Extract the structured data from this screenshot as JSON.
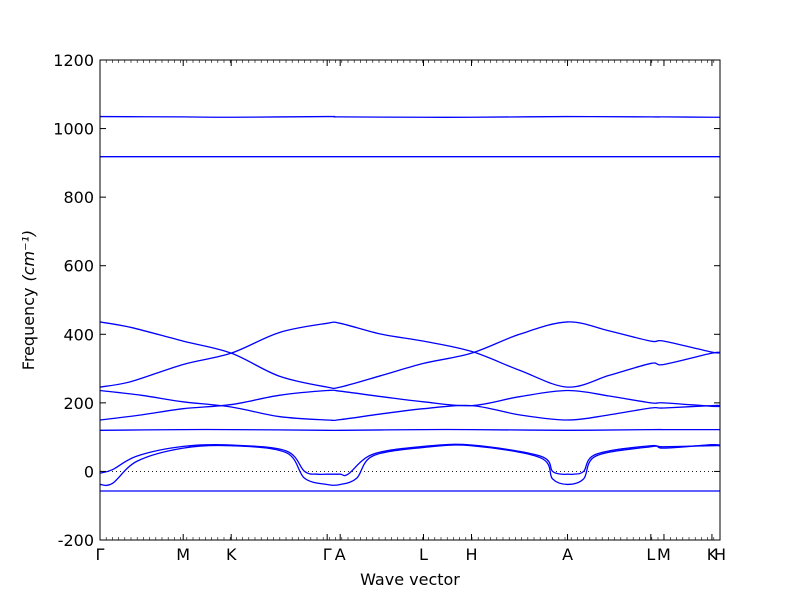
{
  "chart_data": {
    "type": "line",
    "title": "",
    "xlabel": "Wave vector",
    "ylabel": "Frequency",
    "ylabel_unit": "(cm⁻¹)",
    "ylim": [
      -200,
      1200
    ],
    "yticks": [
      -200,
      0,
      200,
      400,
      600,
      800,
      1000,
      1200
    ],
    "grid": false,
    "legend": "none",
    "line_color": "#0000ff",
    "zero_line_color": "#000000",
    "x_ticks": [
      {
        "label": "Γ",
        "x": 0.0
      },
      {
        "label": "M",
        "x": 0.1342
      },
      {
        "label": "K",
        "x": 0.2116
      },
      {
        "label": "Γ",
        "x": 0.3664
      },
      {
        "label": "A",
        "x": 0.3874
      },
      {
        "label": "L",
        "x": 0.5218
      },
      {
        "label": "H",
        "x": 0.5992
      },
      {
        "label": "A",
        "x": 0.7541
      },
      {
        "label": "L",
        "x": 0.8884
      },
      {
        "label": "M",
        "x": 0.9096
      },
      {
        "label": "K",
        "x": 0.987
      },
      {
        "label": "H",
        "x": 1.0
      }
    ],
    "series": [
      {
        "x": [
          0,
          0.1342,
          0.1729,
          0.2116,
          0.289,
          0.3664,
          0.3874,
          0.5218,
          0.5992,
          0.6766,
          0.7541,
          0.8884,
          0.9096,
          0.987,
          1.0
        ],
        "y": [
          -57,
          -57,
          -57,
          -57,
          -57,
          -57,
          -57,
          -57,
          -57,
          -57,
          -57,
          -57,
          -57,
          -57,
          -57
        ]
      },
      {
        "x": [
          0,
          0.02,
          0.06,
          0.1342,
          0.2116,
          0.3,
          0.33,
          0.3664,
          0.3874,
          0.414,
          0.44,
          0.5218,
          0.5992,
          0.71,
          0.73,
          0.7541,
          0.78,
          0.8,
          0.8884,
          0.9096,
          0.987,
          1.0
        ],
        "y": [
          -38,
          -35,
          30,
          68,
          75,
          55,
          -20,
          -38,
          -38,
          -20,
          45,
          70,
          75,
          40,
          -22,
          -38,
          -22,
          45,
          72,
          72,
          75,
          75
        ]
      },
      {
        "x": [
          0,
          0.02,
          0.06,
          0.1342,
          0.2116,
          0.3,
          0.33,
          0.35,
          0.3664,
          0.3874,
          0.4,
          0.44,
          0.5218,
          0.5992,
          0.71,
          0.73,
          0.745,
          0.7541,
          0.765,
          0.78,
          0.8,
          0.8884,
          0.9096,
          0.987,
          1.0
        ],
        "y": [
          -5,
          5,
          45,
          73,
          77,
          60,
          0,
          -8,
          -8,
          -8,
          -8,
          50,
          73,
          77,
          45,
          0,
          -8,
          -8,
          -8,
          0,
          50,
          75,
          68,
          78,
          76
        ]
      },
      {
        "x": [
          0,
          0.1342,
          0.2116,
          0.3664,
          0.3874,
          0.5218,
          0.5992,
          0.7541,
          0.8884,
          0.9096,
          0.987,
          1.0
        ],
        "y": [
          120,
          122,
          122,
          120,
          120,
          122,
          122,
          120,
          122,
          122,
          122,
          122
        ]
      },
      {
        "x": [
          0,
          0.0671,
          0.1342,
          0.2116,
          0.289,
          0.3664,
          0.3874,
          0.4546,
          0.5218,
          0.5992,
          0.6766,
          0.7541,
          0.8212,
          0.8884,
          0.9096,
          0.987,
          1.0
        ],
        "y": [
          150,
          165,
          183,
          195,
          222,
          236,
          234,
          218,
          203,
          192,
          218,
          236,
          220,
          200,
          200,
          190,
          190
        ]
      },
      {
        "x": [
          0,
          0.0671,
          0.1342,
          0.2116,
          0.289,
          0.3664,
          0.3874,
          0.4546,
          0.5218,
          0.5992,
          0.6766,
          0.7541,
          0.8212,
          0.8884,
          0.9096,
          0.987,
          1.0
        ],
        "y": [
          236,
          222,
          203,
          188,
          160,
          150,
          151,
          168,
          183,
          192,
          165,
          150,
          165,
          185,
          185,
          192,
          192
        ]
      },
      {
        "x": [
          0,
          0.05,
          0.1342,
          0.2116,
          0.289,
          0.3664,
          0.3874,
          0.4546,
          0.5218,
          0.5992,
          0.6766,
          0.7541,
          0.8212,
          0.8884,
          0.9096,
          0.987,
          1.0
        ],
        "y": [
          246,
          262,
          312,
          345,
          405,
          432,
          432,
          400,
          380,
          350,
          295,
          246,
          280,
          315,
          312,
          345,
          345
        ]
      },
      {
        "x": [
          0,
          0.05,
          0.1342,
          0.2116,
          0.289,
          0.3664,
          0.3874,
          0.4546,
          0.5218,
          0.5992,
          0.6766,
          0.7541,
          0.8212,
          0.8884,
          0.9096,
          0.987,
          1.0
        ],
        "y": [
          436,
          420,
          380,
          345,
          278,
          246,
          246,
          280,
          315,
          345,
          400,
          436,
          410,
          380,
          380,
          348,
          348
        ]
      },
      {
        "x": [
          0,
          0.1342,
          0.2116,
          0.3664,
          0.3874,
          0.5218,
          0.5992,
          0.7541,
          0.8884,
          0.9096,
          0.987,
          1.0
        ],
        "y": [
          918,
          918,
          918,
          918,
          918,
          918,
          918,
          918,
          918,
          918,
          918,
          918
        ]
      },
      {
        "x": [
          0,
          0.1342,
          0.2116,
          0.3664,
          0.3874,
          0.5218,
          0.5992,
          0.7541,
          0.8884,
          0.9096,
          0.987,
          1.0
        ],
        "y": [
          1035,
          1034,
          1033,
          1035,
          1034,
          1033,
          1033,
          1035,
          1034,
          1034,
          1033,
          1033
        ]
      }
    ]
  }
}
